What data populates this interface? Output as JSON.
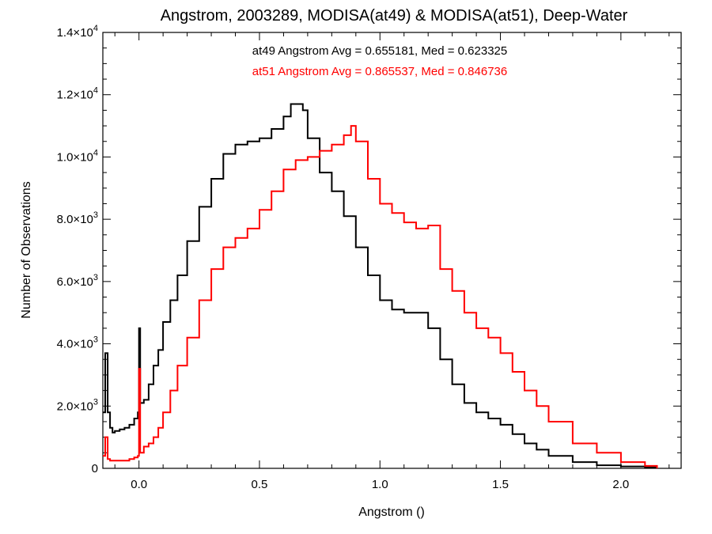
{
  "chart_data": {
    "type": "line",
    "title": "Angstrom, 2003289, MODISA(at49) & MODISA(at51), Deep-Water",
    "xlabel": "Angstrom ()",
    "ylabel": "Number of Observations",
    "xlim": [
      -0.15,
      2.25
    ],
    "ylim": [
      0,
      14000
    ],
    "grid": false,
    "step": true,
    "x_ticks": [
      0.0,
      0.5,
      1.0,
      1.5,
      2.0
    ],
    "x_tick_labels": [
      "0.0",
      "0.5",
      "1.0",
      "1.5",
      "2.0"
    ],
    "y_ticks": [
      {
        "value": 0,
        "mantissa": "0",
        "exp": ""
      },
      {
        "value": 2000,
        "mantissa": "2.0×10",
        "exp": "3"
      },
      {
        "value": 4000,
        "mantissa": "4.0×10",
        "exp": "3"
      },
      {
        "value": 6000,
        "mantissa": "6.0×10",
        "exp": "3"
      },
      {
        "value": 8000,
        "mantissa": "8.0×10",
        "exp": "3"
      },
      {
        "value": 10000,
        "mantissa": "1.0×10",
        "exp": "4"
      },
      {
        "value": 12000,
        "mantissa": "1.2×10",
        "exp": "4"
      },
      {
        "value": 14000,
        "mantissa": "1.4×10",
        "exp": "4"
      }
    ],
    "annotations": [
      {
        "text": "at49 Angstrom Avg = 0.655181, Med = 0.623325",
        "color": "#000000"
      },
      {
        "text": "at51 Angstrom Avg = 0.865537, Med = 0.846736",
        "color": "#ff0000"
      }
    ],
    "series": [
      {
        "color": "#000000",
        "x": [
          -0.15,
          -0.14,
          -0.13,
          -0.12,
          -0.11,
          -0.1,
          -0.08,
          -0.06,
          -0.04,
          -0.02,
          -0.005,
          0.0,
          0.005,
          0.02,
          0.04,
          0.06,
          0.08,
          0.1,
          0.13,
          0.16,
          0.2,
          0.25,
          0.3,
          0.35,
          0.4,
          0.45,
          0.5,
          0.55,
          0.6,
          0.63,
          0.65,
          0.68,
          0.7,
          0.75,
          0.8,
          0.85,
          0.9,
          0.95,
          1.0,
          1.05,
          1.1,
          1.15,
          1.2,
          1.25,
          1.3,
          1.35,
          1.4,
          1.45,
          1.5,
          1.55,
          1.6,
          1.65,
          1.7,
          1.8,
          1.9,
          2.0,
          2.1,
          2.15
        ],
        "values": [
          1800,
          3700,
          1800,
          1300,
          1150,
          1200,
          1250,
          1300,
          1400,
          1600,
          1800,
          4500,
          2100,
          2200,
          2700,
          3300,
          3800,
          4700,
          5400,
          6200,
          7300,
          8400,
          9300,
          10100,
          10400,
          10500,
          10600,
          10900,
          11300,
          11700,
          11700,
          11500,
          10600,
          9500,
          8900,
          8100,
          7100,
          6200,
          5400,
          5100,
          5000,
          5000,
          4500,
          3500,
          2700,
          2100,
          1800,
          1600,
          1400,
          1100,
          800,
          600,
          400,
          200,
          100,
          60,
          30,
          0
        ]
      },
      {
        "color": "#ff0000",
        "x": [
          -0.15,
          -0.14,
          -0.13,
          -0.12,
          -0.1,
          -0.08,
          -0.06,
          -0.04,
          -0.02,
          -0.005,
          0.0,
          0.005,
          0.02,
          0.04,
          0.06,
          0.08,
          0.1,
          0.13,
          0.16,
          0.2,
          0.25,
          0.3,
          0.35,
          0.4,
          0.45,
          0.5,
          0.55,
          0.6,
          0.65,
          0.7,
          0.75,
          0.8,
          0.85,
          0.88,
          0.9,
          0.95,
          1.0,
          1.05,
          1.1,
          1.15,
          1.2,
          1.25,
          1.3,
          1.35,
          1.4,
          1.45,
          1.5,
          1.55,
          1.6,
          1.65,
          1.7,
          1.8,
          1.9,
          2.0,
          2.1,
          2.15
        ],
        "values": [
          400,
          1000,
          300,
          250,
          250,
          250,
          250,
          300,
          350,
          400,
          3200,
          500,
          700,
          800,
          1000,
          1300,
          1800,
          2500,
          3300,
          4200,
          5400,
          6400,
          7100,
          7400,
          7700,
          8300,
          8900,
          9600,
          9900,
          10000,
          10200,
          10400,
          10700,
          11000,
          10500,
          9300,
          8500,
          8200,
          7900,
          7700,
          7800,
          6400,
          5700,
          5000,
          4500,
          4200,
          3700,
          3100,
          2500,
          2000,
          1500,
          800,
          500,
          200,
          80,
          0
        ]
      }
    ]
  }
}
